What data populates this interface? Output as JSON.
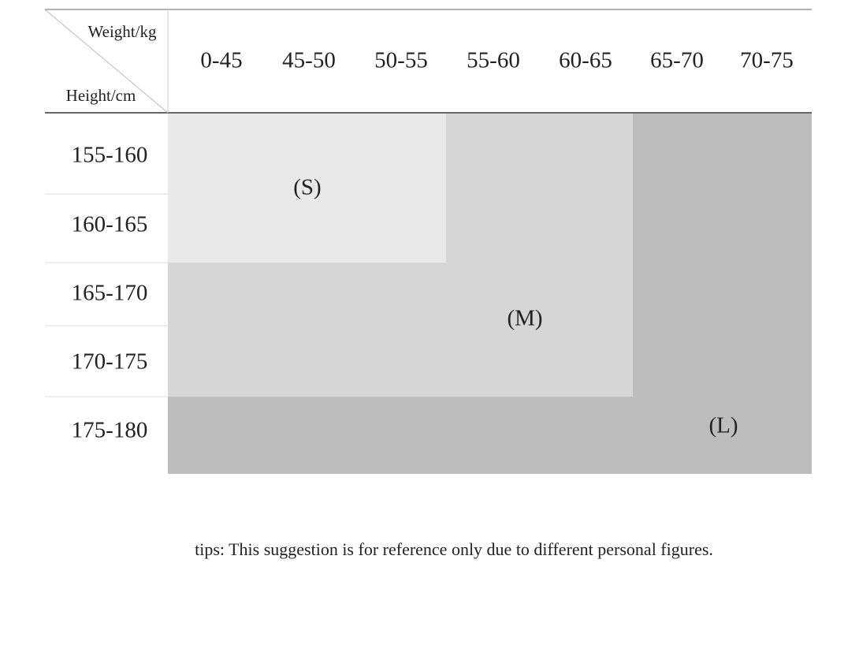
{
  "header": {
    "weight_label": "Weight/kg",
    "height_label": "Height/cm"
  },
  "columns": [
    "0-45",
    "45-50",
    "50-55",
    "55-60",
    "60-65",
    "65-70",
    "70-75"
  ],
  "rows": [
    "155-160",
    "160-165",
    "165-170",
    "170-175",
    "175-180"
  ],
  "sizes": [
    "(S)",
    "(M)",
    "(L)"
  ],
  "tips": "tips: This suggestion is for reference only due to different personal figures."
}
